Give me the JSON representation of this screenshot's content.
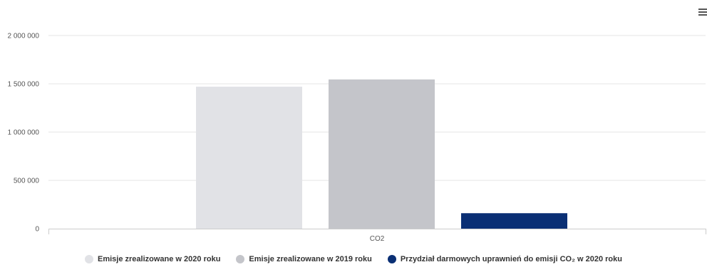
{
  "chart_data": {
    "type": "bar",
    "categories": [
      "CO2"
    ],
    "yticks": [
      "0",
      "500 000",
      "1 000 000",
      "1 500 000",
      "2 000 000"
    ],
    "ylim": [
      0,
      2000000
    ],
    "grid": true,
    "legend_position": "bottom",
    "series": [
      {
        "name": "Emisje zrealizowane w 2020 roku",
        "values": [
          1470000
        ],
        "color": "#e1e2e6"
      },
      {
        "name": "Emisje zrealizowane w 2019 roku",
        "values": [
          1545000
        ],
        "color": "#c4c5ca"
      },
      {
        "name": "Przydział darmowych uprawnień do emisji CO₂ w 2020 roku",
        "values": [
          160000
        ],
        "color": "#0a2f74"
      }
    ]
  },
  "menu": {
    "icon": "hamburger-menu-icon"
  }
}
